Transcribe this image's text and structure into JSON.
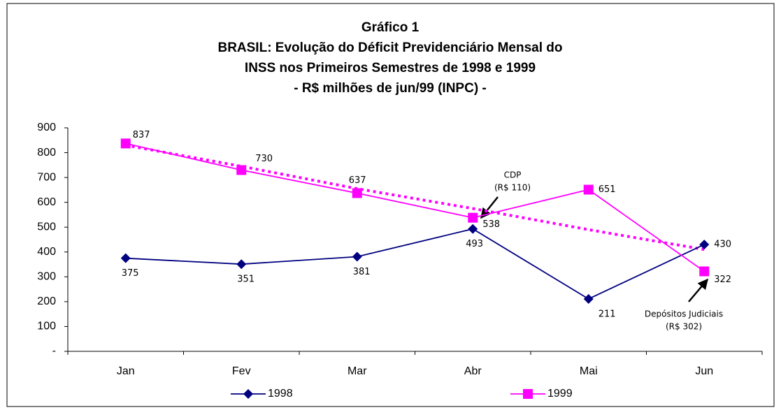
{
  "chart_data": {
    "type": "line",
    "title": [
      "Gráfico 1",
      "BRASIL: Evolução do Déficit Previdenciário Mensal do",
      "INSS nos Primeiros Semestres de 1998 e 1999",
      "- R$ milhões de jun/99 (INPC) -"
    ],
    "categories": [
      "Jan",
      "Fev",
      "Mar",
      "Abr",
      "Mai",
      "Jun"
    ],
    "series": [
      {
        "name": "1998",
        "color": "#000080",
        "marker": "diamond",
        "values": [
          375,
          351,
          381,
          493,
          211,
          430
        ]
      },
      {
        "name": "1999",
        "color": "#ff00ff",
        "marker": "square",
        "values": [
          837,
          730,
          637,
          538,
          651,
          322
        ]
      },
      {
        "color": "#ff00ff",
        "dashed": true,
        "values": [
          830,
          745,
          655,
          575,
          490,
          410
        ]
      }
    ],
    "ylim": [
      0,
      900
    ],
    "yticks": [
      {
        "value": 0,
        "label": "-"
      },
      100,
      200,
      300,
      400,
      500,
      600,
      700,
      800,
      900
    ],
    "annotations": [
      [
        "CDP",
        "(R$ 110)"
      ],
      [
        "Depósitos Judiciais",
        "(R$ 302)"
      ]
    ],
    "legend": "bottom"
  }
}
